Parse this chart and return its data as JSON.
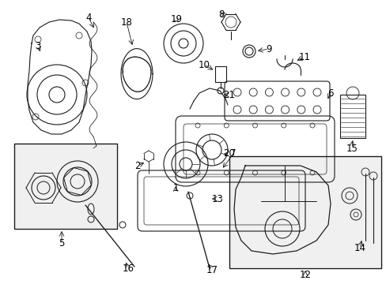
{
  "bg_color": "#ffffff",
  "line_color": "#1a1a1a",
  "fig_width": 4.89,
  "fig_height": 3.6,
  "dpi": 100,
  "label_fontsize": 8.5,
  "label_color": "#000000"
}
